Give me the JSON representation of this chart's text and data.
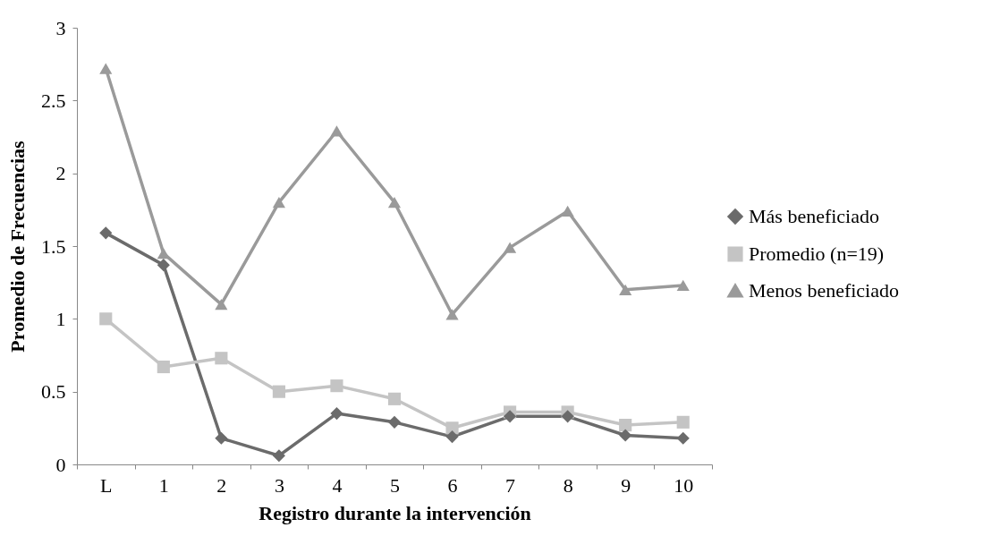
{
  "chart_data": {
    "type": "line",
    "xlabel": "Registro durante la intervención",
    "ylabel": "Promedio de Frecuencias",
    "categories": [
      "L",
      "1",
      "2",
      "3",
      "4",
      "5",
      "6",
      "7",
      "8",
      "9",
      "10"
    ],
    "series": [
      {
        "name": "Más beneficiado",
        "color": "#6b6b6b",
        "marker": "diamond",
        "values": [
          1.59,
          1.37,
          0.18,
          0.06,
          0.35,
          0.29,
          0.19,
          0.33,
          0.33,
          0.2,
          0.18
        ]
      },
      {
        "name": "Promedio (n=19)",
        "color": "#c4c4c4",
        "marker": "square",
        "values": [
          1.0,
          0.67,
          0.73,
          0.5,
          0.54,
          0.45,
          0.25,
          0.36,
          0.36,
          0.27,
          0.29
        ]
      },
      {
        "name": "Menos beneficiado",
        "color": "#9a9a9a",
        "marker": "triangle",
        "values": [
          2.72,
          1.45,
          1.1,
          1.8,
          2.29,
          1.8,
          1.03,
          1.49,
          1.74,
          1.2,
          1.23
        ]
      }
    ],
    "ylim": [
      0,
      3
    ],
    "yticks": [
      0,
      0.5,
      1,
      1.5,
      2,
      2.5,
      3
    ],
    "grid": false,
    "legend": "right",
    "line_style": "solid"
  }
}
